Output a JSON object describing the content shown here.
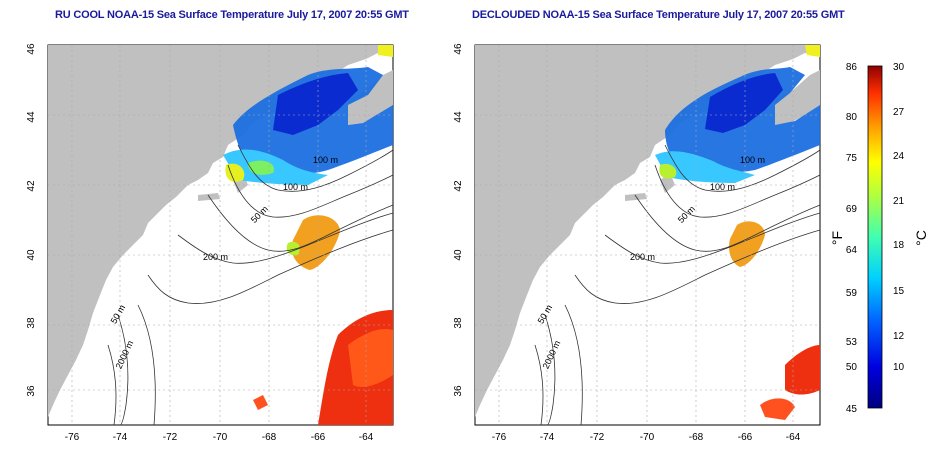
{
  "titles": {
    "left": "RU COOL NOAA-15 Sea Surface Temperature July 17, 2007 20:55 GMT",
    "right": "DECLOUDED NOAA-15 Sea Surface Temperature July 17, 2007 20:55 GMT"
  },
  "axes": {
    "x_ticks": [
      "-76",
      "-74",
      "-72",
      "-70",
      "-68",
      "-66",
      "-64"
    ],
    "y_ticks": [
      "46",
      "44",
      "42",
      "40",
      "38",
      "36"
    ]
  },
  "contour_labels": {
    "m100_top": "100 m",
    "m100_mid": "100 m",
    "m50_mid": "50 m",
    "m200": "200 m",
    "m50_south": "50 m",
    "m2000": "2000 m"
  },
  "colorbar": {
    "fahrenheit_ticks": [
      "86",
      "80",
      "75",
      "69",
      "64",
      "59",
      "53",
      "50",
      "45"
    ],
    "celsius_ticks": [
      "30",
      "27",
      "24",
      "21",
      "18",
      "15",
      "12",
      "10"
    ],
    "fahrenheit_unit": "°F",
    "celsius_unit": "°C"
  },
  "colors": {
    "title": "#1a1a9c",
    "land": "#c0c0c0",
    "ocean": "#ffffff"
  }
}
